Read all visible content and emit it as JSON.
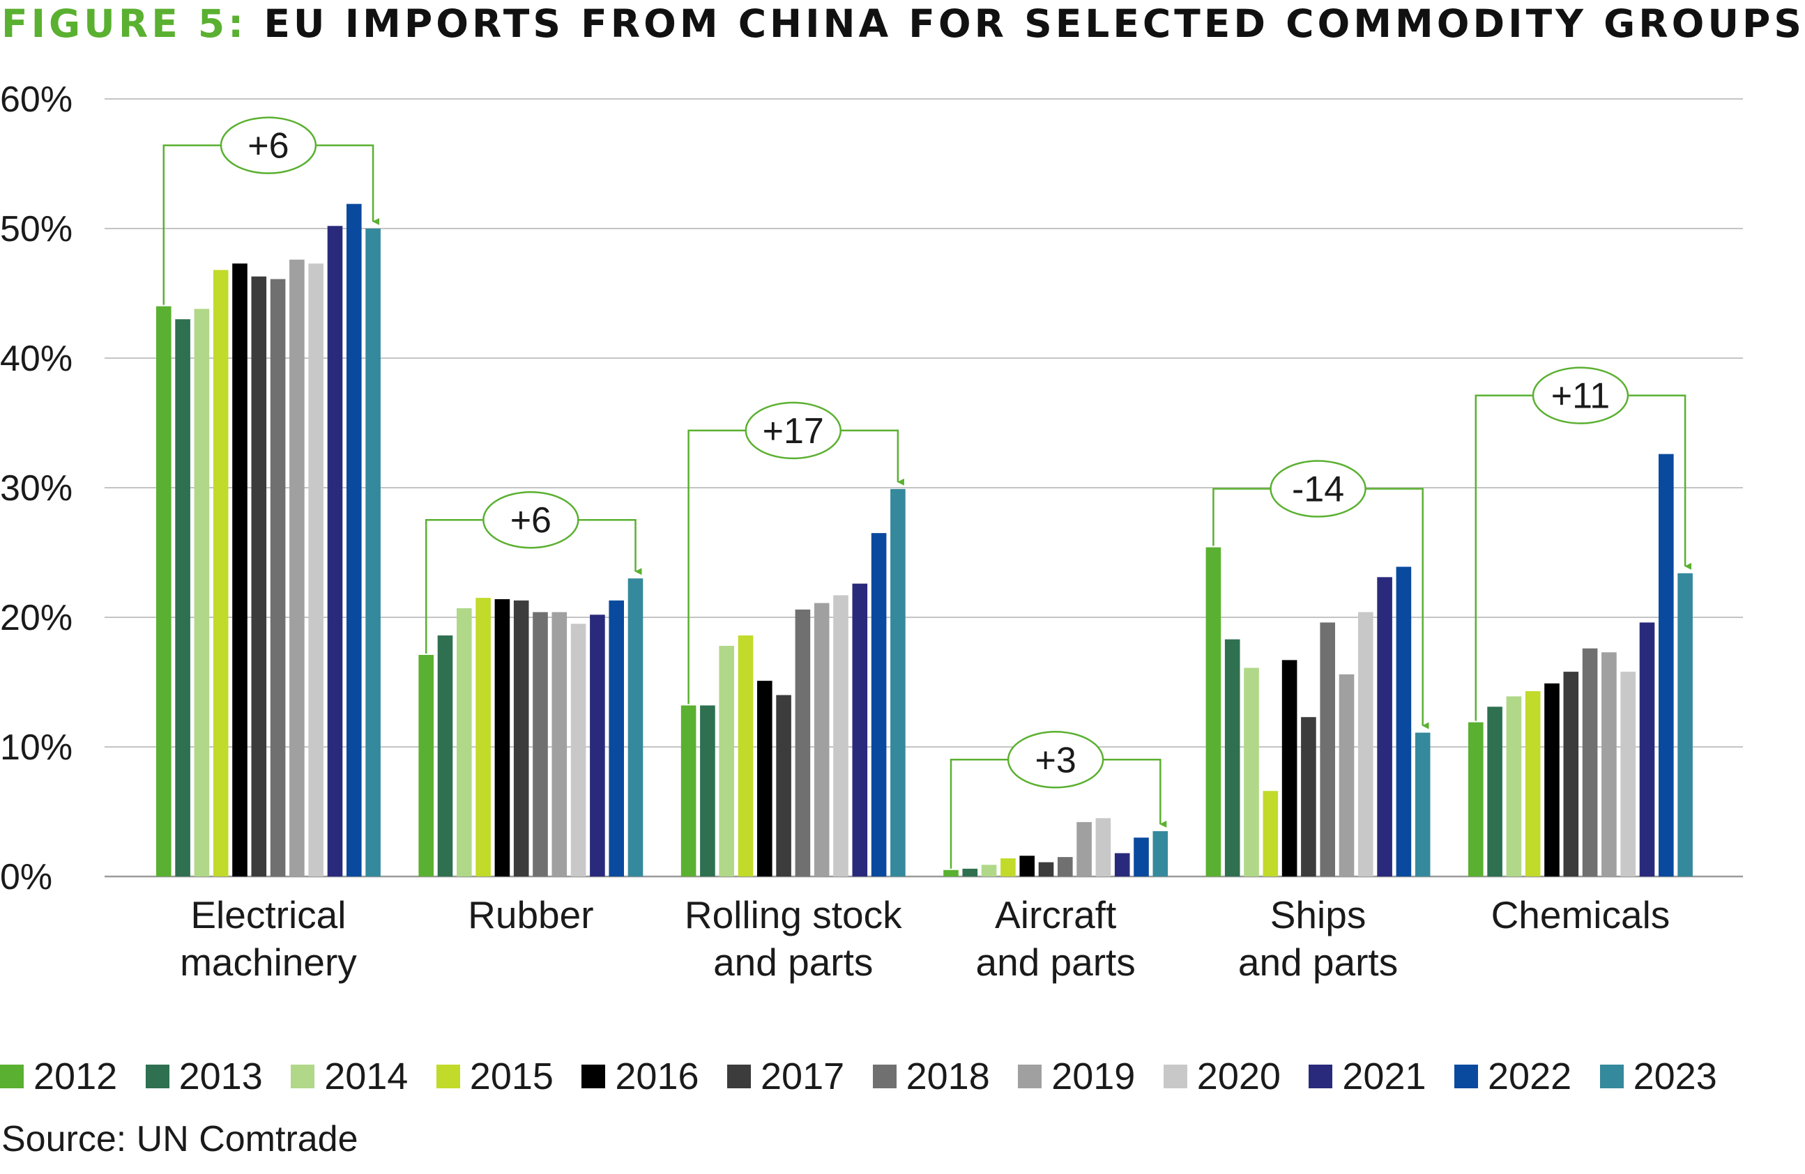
{
  "title": {
    "prefix": "FIGURE 5:",
    "text": "EU IMPORTS FROM CHINA FOR SELECTED COMMODITY GROUPS"
  },
  "source": "Source: UN Comtrade",
  "chart_data": {
    "type": "bar",
    "title": "FIGURE 5: EU IMPORTS FROM CHINA FOR SELECTED COMMODITY GROUPS",
    "ylim": [
      0,
      60
    ],
    "yticks": [
      "0%",
      "10%",
      "20%",
      "30%",
      "40%",
      "50%",
      "60%"
    ],
    "grid": true,
    "legend_position": "bottom",
    "categories": [
      [
        "Electrical",
        "machinery"
      ],
      [
        "Rubber"
      ],
      [
        "Rolling stock",
        "and parts"
      ],
      [
        "Aircraft",
        "and parts"
      ],
      [
        "Ships",
        "and parts"
      ],
      [
        "Chemicals"
      ]
    ],
    "series": [
      {
        "name": "2012",
        "color": "#5ab030",
        "values": [
          44.0,
          17.1,
          13.2,
          0.5,
          25.4,
          11.9
        ]
      },
      {
        "name": "2013",
        "color": "#2e7050",
        "values": [
          43.0,
          18.6,
          13.2,
          0.6,
          18.3,
          13.1
        ]
      },
      {
        "name": "2014",
        "color": "#b0d888",
        "values": [
          43.8,
          20.7,
          17.8,
          0.9,
          16.1,
          13.9
        ]
      },
      {
        "name": "2015",
        "color": "#c2da2a",
        "values": [
          46.8,
          21.5,
          18.6,
          1.4,
          6.6,
          14.3
        ]
      },
      {
        "name": "2016",
        "color": "#000000",
        "values": [
          47.3,
          21.4,
          15.1,
          1.6,
          16.7,
          14.9
        ]
      },
      {
        "name": "2017",
        "color": "#3c3c3c",
        "values": [
          46.3,
          21.3,
          14.0,
          1.1,
          12.3,
          15.8
        ]
      },
      {
        "name": "2018",
        "color": "#707070",
        "values": [
          46.1,
          20.4,
          20.6,
          1.5,
          19.6,
          17.6
        ]
      },
      {
        "name": "2019",
        "color": "#a0a0a0",
        "values": [
          47.6,
          20.4,
          21.1,
          4.2,
          15.6,
          17.3
        ]
      },
      {
        "name": "2020",
        "color": "#c8c8c8",
        "values": [
          47.3,
          19.5,
          21.7,
          4.5,
          20.4,
          15.8
        ]
      },
      {
        "name": "2021",
        "color": "#2a2a7c",
        "values": [
          50.2,
          20.2,
          22.6,
          1.8,
          23.1,
          19.6
        ]
      },
      {
        "name": "2022",
        "color": "#0a4a9e",
        "values": [
          51.9,
          21.3,
          26.5,
          3.0,
          23.9,
          32.6
        ]
      },
      {
        "name": "2023",
        "color": "#35899c",
        "values": [
          50.0,
          23.0,
          29.9,
          3.5,
          11.1,
          23.4
        ]
      }
    ],
    "annotations": [
      {
        "category": 0,
        "label": "+6"
      },
      {
        "category": 1,
        "label": "+6"
      },
      {
        "category": 2,
        "label": "+17"
      },
      {
        "category": 3,
        "label": "+3"
      },
      {
        "category": 4,
        "label": "-14"
      },
      {
        "category": 5,
        "label": "+11"
      }
    ],
    "annotation_color": "#5ab030"
  }
}
